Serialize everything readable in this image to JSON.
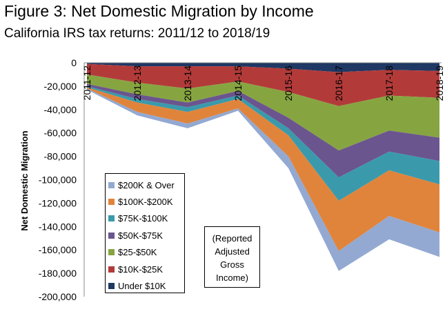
{
  "chart_data": {
    "type": "area",
    "stacked": true,
    "title": "Figure 3: Net Domestic Migration by Income",
    "subtitle": "California IRS tax returns: 2011/12 to 2018/19",
    "xlabel": "",
    "ylabel": "Net Domestic Migration",
    "ylim": [
      -200000,
      0
    ],
    "yticks": [
      "0",
      "-20,000",
      "-40,000",
      "-60,000",
      "-80,000",
      "-100,000",
      "-120,000",
      "-140,000",
      "-160,000",
      "-180,000",
      "-200,000"
    ],
    "ytick_values": [
      0,
      -20000,
      -40000,
      -60000,
      -80000,
      -100000,
      -120000,
      -140000,
      -160000,
      -180000,
      -200000
    ],
    "categories": [
      "2011-12",
      "2012-13",
      "2013-14",
      "2014-15",
      "2015-16",
      "2016-17",
      "2017-18",
      "2018-19"
    ],
    "series": [
      {
        "name": "Under $10K",
        "color": "#1f3864",
        "values": [
          -1000,
          -3000,
          -3000,
          -3000,
          -5000,
          -8000,
          -6000,
          -7000
        ]
      },
      {
        "name": "$10K-$25K",
        "color": "#b23b3a",
        "values": [
          -9000,
          -14000,
          -19000,
          -13000,
          -20000,
          -29000,
          -22000,
          -23000
        ]
      },
      {
        "name": "$25-$50K",
        "color": "#86a541",
        "values": [
          -8000,
          -10000,
          -12000,
          -8000,
          -22000,
          -38000,
          -30000,
          -34000
        ]
      },
      {
        "name": "$50K-$75K",
        "color": "#6b558e",
        "values": [
          -2000,
          -4000,
          -4000,
          -4000,
          -9000,
          -23000,
          -18000,
          -20000
        ]
      },
      {
        "name": "$75K-$100K",
        "color": "#3a9aab",
        "values": [
          -1000,
          -3000,
          -4000,
          -3000,
          -6000,
          -20000,
          -16000,
          -20000
        ]
      },
      {
        "name": "$100K-$200K",
        "color": "#e0843c",
        "values": [
          -1000,
          -8000,
          -10000,
          -8000,
          -18000,
          -43000,
          -39000,
          -41000
        ]
      },
      {
        "name": "$200K & Over",
        "color": "#93a9d2",
        "values": [
          -1000,
          -3000,
          -4000,
          -2000,
          -10000,
          -17000,
          -20000,
          -21000
        ]
      }
    ],
    "legend_order": [
      "$200K & Over",
      "$100K-$200K",
      "$75K-$100K",
      "$50K-$75K",
      "$25-$50K",
      "$10K-$25K",
      "Under $10K"
    ],
    "annotation": [
      "(Reported",
      "Adjusted",
      "Gross",
      "Income)"
    ]
  }
}
